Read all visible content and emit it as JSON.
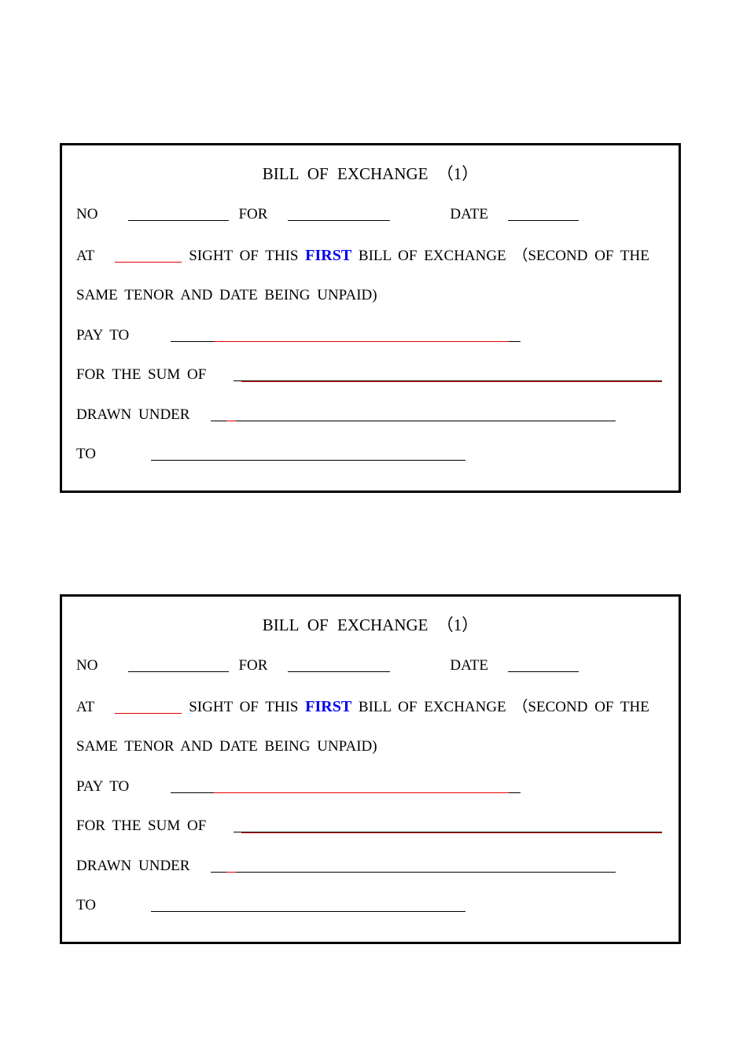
{
  "document": {
    "page_background": "#ffffff",
    "border_color": "#000000",
    "border_width": 3,
    "text_color": "#000000",
    "highlight_color": "#0000f0",
    "red_underline_color": "#e80000",
    "font_family": "Times New Roman, serif",
    "title_fontsize": 21,
    "body_fontsize": 19,
    "bills": [
      {
        "title": "BILL  OF  EXCHANGE   （1）",
        "labels": {
          "no": "NO",
          "for": "FOR",
          "date": "DATE",
          "at": "AT",
          "sight_prefix": "SIGHT OF THIS",
          "first": "FIRST",
          "sight_suffix": "BILL OF EXCHANGE  （SECOND OF THE",
          "same_tenor": "SAME TENOR AND DATE BEING UNPAID)",
          "pay_to": "PAY TO",
          "for_sum": "FOR   THE SUM OF",
          "drawn_under": "DRAWN UNDER",
          "to": "TO"
        }
      },
      {
        "title": "BILL  OF  EXCHANGE   （1）",
        "labels": {
          "no": "NO",
          "for": "FOR",
          "date": "DATE",
          "at": "AT",
          "sight_prefix": "SIGHT OF THIS",
          "first": "FIRST",
          "sight_suffix": "BILL OF EXCHANGE  （SECOND OF THE",
          "same_tenor": "SAME TENOR AND DATE BEING UNPAID)",
          "pay_to": "PAY TO",
          "for_sum": "FOR   THE SUM OF",
          "drawn_under": "DRAWN UNDER",
          "to": "TO"
        }
      }
    ]
  }
}
